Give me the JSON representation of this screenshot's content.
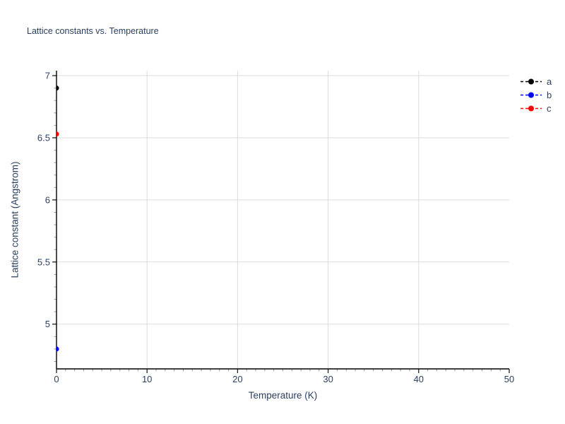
{
  "page": {
    "background": "#ffffff"
  },
  "chart_data": {
    "type": "scatter",
    "title": "Lattice constants vs. Temperature",
    "xlabel": "Temperature (K)",
    "ylabel": "Lattice constant (Angstrom)",
    "xlim": [
      0,
      50
    ],
    "ylim": [
      4.64,
      7.04
    ],
    "x_ticks": {
      "values": [
        0,
        10,
        20,
        30,
        40,
        50
      ],
      "labels": [
        "0",
        "10",
        "20",
        "30",
        "40",
        "50"
      ]
    },
    "y_ticks": {
      "values": [
        5,
        5.5,
        6,
        6.5,
        7
      ],
      "labels": [
        "5",
        "5.5",
        "6",
        "6.5",
        "7"
      ]
    },
    "x_minor_step": 2,
    "y_minor_step": 0.1,
    "x_gridlines": [
      10,
      20,
      30,
      40
    ],
    "y_gridlines": [
      5,
      5.5,
      6,
      6.5,
      7
    ],
    "grid": true,
    "legend": {
      "position": "top-right-outside",
      "entries": [
        "a",
        "b",
        "c"
      ]
    },
    "series": [
      {
        "name": "a",
        "color": "#000000",
        "line_style": "dashed",
        "marker": "circle",
        "x": [
          0
        ],
        "y": [
          6.9
        ]
      },
      {
        "name": "b",
        "color": "#0000ff",
        "line_style": "dashed",
        "marker": "circle",
        "x": [
          0
        ],
        "y": [
          4.8
        ]
      },
      {
        "name": "c",
        "color": "#ff0000",
        "line_style": "dashed",
        "marker": "circle",
        "x": [
          0
        ],
        "y": [
          6.53
        ]
      }
    ]
  },
  "colors": {
    "text": "#2a3f5f",
    "grid": "#dbdbdb",
    "axis": "#000000",
    "major_tick": "#222222",
    "minor_tick": "#999999",
    "background": "#ffffff"
  }
}
